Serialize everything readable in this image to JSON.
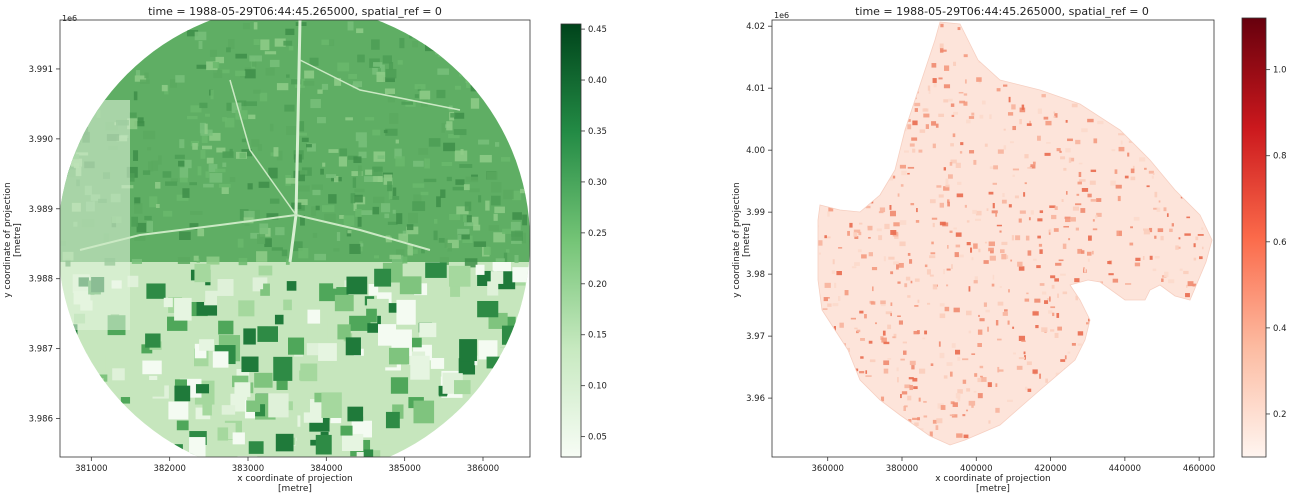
{
  "figures": [
    {
      "title": "time = 1988-05-29T06:44:45.265000, spatial_ref = 0",
      "exponent_label": "1e6",
      "xlabel_line1": "x coordinate of projection",
      "xlabel_line2": "[metre]",
      "ylabel_line1": "y coordinate of projection",
      "ylabel_line2": "[metre]",
      "colormap": "Greens",
      "colors": {
        "low": "#f3fbf1",
        "mid": "#74c476",
        "high": "#00441b"
      }
    },
    {
      "title": "time = 1988-05-29T06:44:45.265000, spatial_ref = 0",
      "exponent_label": "1e6",
      "xlabel_line1": "x coordinate of projection",
      "xlabel_line2": "[metre]",
      "ylabel_line1": "y coordinate of projection",
      "ylabel_line2": "[metre]",
      "colormap": "Reds",
      "colors": {
        "low": "#fff5f0",
        "mid": "#fb6a4a",
        "high": "#67000d"
      }
    }
  ],
  "chart_data": [
    {
      "type": "heatmap",
      "title": "time = 1988-05-29T06:44:45.265000, spatial_ref = 0",
      "xlabel": "x coordinate of projection [metre]",
      "ylabel": "y coordinate of projection [metre]",
      "x_ticks": [
        "381000",
        "382000",
        "383000",
        "384000",
        "385000",
        "386000"
      ],
      "x_tick_values": [
        381000,
        382000,
        383000,
        384000,
        385000,
        386000
      ],
      "y_ticks": [
        "3.986",
        "3.987",
        "3.988",
        "3.989",
        "3.990",
        "3.991"
      ],
      "y_tick_values": [
        3.986,
        3.987,
        3.988,
        3.989,
        3.99,
        3.991
      ],
      "y_offset_label": "1e6",
      "xlim": [
        380600,
        386600
      ],
      "ylim": [
        3.98545,
        3.9917
      ],
      "colorbar": {
        "colormap": "Greens",
        "range": [
          0.03,
          0.455
        ],
        "ticks": [
          "0.05",
          "0.10",
          "0.15",
          "0.20",
          "0.25",
          "0.30",
          "0.35",
          "0.40",
          "0.45"
        ],
        "tick_values": [
          0.05,
          0.1,
          0.15,
          0.2,
          0.25,
          0.3,
          0.35,
          0.4,
          0.45
        ]
      }
    },
    {
      "type": "heatmap",
      "title": "time = 1988-05-29T06:44:45.265000, spatial_ref = 0",
      "xlabel": "x coordinate of projection [metre]",
      "ylabel": "y coordinate of projection [metre]",
      "x_ticks": [
        "360000",
        "380000",
        "400000",
        "420000",
        "440000",
        "460000"
      ],
      "x_tick_values": [
        360000,
        380000,
        400000,
        420000,
        440000,
        460000
      ],
      "y_ticks": [
        "3.96",
        "3.97",
        "3.98",
        "3.99",
        "4.00",
        "4.01",
        "4.02"
      ],
      "y_tick_values": [
        3.96,
        3.97,
        3.98,
        3.99,
        4.0,
        4.01,
        4.02
      ],
      "y_offset_label": "1e6",
      "xlim": [
        345000,
        464000
      ],
      "ylim": [
        3.9505,
        4.021
      ],
      "colorbar": {
        "colormap": "Reds",
        "range": [
          0.1,
          1.12
        ],
        "ticks": [
          "0.2",
          "0.4",
          "0.6",
          "0.8",
          "1.0"
        ],
        "tick_values": [
          0.2,
          0.4,
          0.6,
          0.8,
          1.0
        ]
      }
    }
  ]
}
